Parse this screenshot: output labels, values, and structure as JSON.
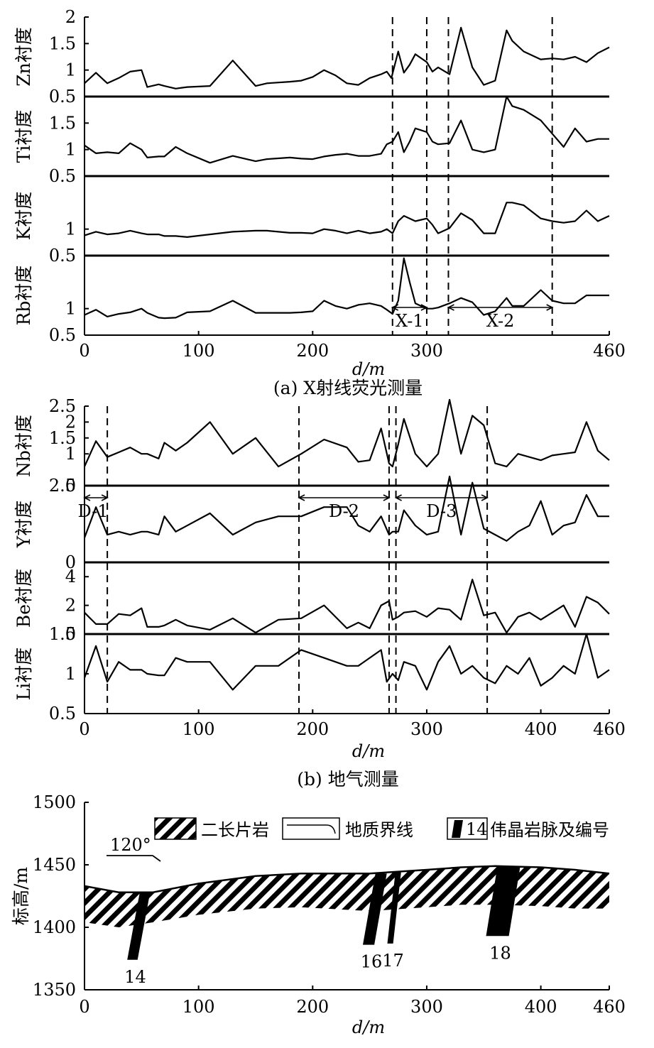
{
  "chart_data": [
    {
      "type": "line",
      "caption": "(a) X射线荧光测量",
      "xlabel": "d/m",
      "xlim": [
        0,
        460
      ],
      "xticks": [
        "0",
        "100",
        "200",
        "300",
        "460"
      ],
      "xtick_values": [
        0,
        100,
        200,
        300,
        460
      ],
      "divider_x": [
        270,
        300,
        319,
        410
      ],
      "zones": [
        {
          "label": "X-1",
          "from": 270,
          "to": 300
        },
        {
          "label": "X-2",
          "from": 319,
          "to": 410
        }
      ],
      "panels": [
        {
          "ylabel": "Zn衬度",
          "ylim": [
            0.5,
            2
          ],
          "yticks": [
            "0.5",
            "1",
            "1.5",
            "2"
          ],
          "ytick_values": [
            0.5,
            1,
            1.5,
            2
          ],
          "x": [
            0,
            10,
            20,
            30,
            40,
            50,
            55,
            65,
            70,
            80,
            90,
            110,
            130,
            150,
            160,
            180,
            190,
            200,
            210,
            220,
            230,
            240,
            250,
            260,
            265,
            269,
            275,
            280,
            285,
            290,
            300,
            305,
            310,
            320,
            330,
            340,
            350,
            360,
            370,
            375,
            385,
            400,
            410,
            420,
            430,
            440,
            450,
            460
          ],
          "values": [
            0.75,
            0.95,
            0.75,
            0.85,
            0.97,
            1.0,
            0.68,
            0.73,
            0.7,
            0.65,
            0.68,
            0.7,
            1.18,
            0.7,
            0.75,
            0.78,
            0.8,
            0.87,
            1.0,
            0.9,
            0.75,
            0.72,
            0.85,
            0.92,
            0.97,
            0.85,
            1.35,
            0.95,
            1.1,
            1.3,
            1.15,
            0.97,
            1.05,
            0.92,
            1.8,
            1.05,
            0.72,
            0.8,
            1.75,
            1.55,
            1.35,
            1.2,
            1.22,
            1.2,
            1.25,
            1.15,
            1.32,
            1.43
          ]
        },
        {
          "ylabel": "Ti衬度",
          "ylim": [
            0.5,
            2
          ],
          "yticks": [
            "0.5",
            "1",
            "1.5"
          ],
          "ytick_values": [
            0.5,
            1,
            1.5
          ],
          "x": [
            0,
            10,
            20,
            30,
            40,
            50,
            55,
            65,
            70,
            80,
            90,
            110,
            130,
            150,
            160,
            180,
            190,
            200,
            210,
            220,
            230,
            240,
            250,
            260,
            265,
            270,
            275,
            280,
            285,
            290,
            300,
            305,
            310,
            320,
            330,
            340,
            350,
            360,
            370,
            375,
            385,
            400,
            410,
            420,
            430,
            440,
            450,
            460
          ],
          "values": [
            1.08,
            0.93,
            0.95,
            0.93,
            1.12,
            1.0,
            0.85,
            0.87,
            0.87,
            1.05,
            0.93,
            0.75,
            0.88,
            0.78,
            0.82,
            0.85,
            0.83,
            0.82,
            0.87,
            0.9,
            0.92,
            0.88,
            0.88,
            0.92,
            1.1,
            1.15,
            1.33,
            0.95,
            1.15,
            1.4,
            1.33,
            1.15,
            1.1,
            1.12,
            1.55,
            1.0,
            0.95,
            1.0,
            2.0,
            1.82,
            1.75,
            1.55,
            1.3,
            1.05,
            1.4,
            1.15,
            1.2,
            1.2
          ]
        },
        {
          "ylabel": "K衬度",
          "ylim": [
            0.5,
            2
          ],
          "yticks": [
            "0.5",
            "1"
          ],
          "ytick_values": [
            0.5,
            1
          ],
          "x": [
            0,
            10,
            20,
            30,
            40,
            50,
            55,
            65,
            70,
            80,
            90,
            110,
            130,
            150,
            160,
            180,
            190,
            200,
            210,
            220,
            230,
            240,
            250,
            260,
            265,
            270,
            275,
            280,
            285,
            290,
            300,
            305,
            310,
            320,
            330,
            340,
            350,
            360,
            370,
            375,
            385,
            400,
            410,
            420,
            430,
            440,
            450,
            460
          ],
          "values": [
            0.88,
            0.95,
            0.9,
            0.92,
            0.97,
            0.92,
            0.9,
            0.9,
            0.87,
            0.87,
            0.85,
            0.9,
            0.95,
            0.97,
            0.97,
            0.93,
            0.93,
            0.92,
            1.0,
            0.97,
            0.92,
            0.97,
            0.92,
            0.95,
            1.0,
            0.92,
            1.15,
            1.25,
            1.2,
            1.15,
            1.2,
            1.08,
            0.92,
            1.02,
            1.3,
            1.17,
            0.92,
            0.92,
            1.5,
            1.5,
            1.45,
            1.2,
            1.15,
            1.12,
            1.15,
            1.35,
            1.15,
            1.25
          ]
        },
        {
          "ylabel": "Rb衬度",
          "ylim": [
            0.5,
            2
          ],
          "yticks": [
            "0.5",
            "1"
          ],
          "ytick_values": [
            0.5,
            1
          ],
          "x": [
            0,
            10,
            20,
            30,
            40,
            50,
            55,
            65,
            70,
            80,
            90,
            110,
            130,
            150,
            160,
            180,
            190,
            200,
            210,
            220,
            230,
            240,
            250,
            260,
            265,
            270,
            275,
            280,
            285,
            290,
            300,
            305,
            310,
            320,
            330,
            340,
            350,
            360,
            370,
            375,
            385,
            400,
            410,
            420,
            430,
            440,
            450,
            460
          ],
          "values": [
            0.88,
            0.98,
            0.85,
            0.9,
            0.93,
            1.0,
            0.92,
            0.83,
            0.82,
            0.83,
            0.93,
            0.95,
            1.15,
            0.92,
            0.92,
            0.92,
            0.93,
            0.95,
            1.15,
            1.05,
            1.0,
            1.07,
            1.1,
            1.05,
            0.98,
            0.9,
            1.15,
            1.95,
            1.5,
            1.1,
            1.0,
            1.0,
            1.02,
            1.1,
            1.2,
            1.12,
            0.88,
            0.95,
            1.2,
            1.05,
            1.05,
            1.35,
            1.15,
            1.1,
            1.1,
            1.25,
            1.25,
            1.25
          ]
        }
      ]
    },
    {
      "type": "line",
      "caption": "(b) 地气测量",
      "xlabel": "d/m",
      "xlim": [
        0,
        460
      ],
      "xticks": [
        "0",
        "100",
        "200",
        "300",
        "400",
        "460"
      ],
      "xtick_values": [
        0,
        100,
        200,
        300,
        400,
        460
      ],
      "divider_x": [
        20,
        188,
        267,
        273,
        353
      ],
      "zones": [
        {
          "label": "D-1",
          "from": 0,
          "to": 20
        },
        {
          "label": "D-2",
          "from": 188,
          "to": 267
        },
        {
          "label": "D-3",
          "from": 273,
          "to": 353
        }
      ],
      "panels": [
        {
          "ylabel": "Nb衬度",
          "ylim": [
            0,
            2.5
          ],
          "yticks": [
            "0",
            "1",
            "1.5",
            "2",
            "2.5"
          ],
          "ytick_values": [
            0,
            1,
            1.5,
            2,
            2.5
          ],
          "x": [
            0,
            10,
            20,
            30,
            40,
            50,
            55,
            65,
            70,
            80,
            90,
            110,
            130,
            150,
            170,
            190,
            210,
            230,
            240,
            250,
            260,
            267,
            270,
            275,
            280,
            290,
            300,
            310,
            320,
            330,
            340,
            350,
            360,
            370,
            380,
            390,
            400,
            410,
            420,
            430,
            440,
            450,
            460
          ],
          "values": [
            0.6,
            1.4,
            0.9,
            1.05,
            1.2,
            1.0,
            1.0,
            0.85,
            1.35,
            1.1,
            1.35,
            2.0,
            1.0,
            1.5,
            0.6,
            1.0,
            1.45,
            1.2,
            0.75,
            0.8,
            1.8,
            0.7,
            0.6,
            1.3,
            2.1,
            1.0,
            0.6,
            1.0,
            2.7,
            1.0,
            2.2,
            1.9,
            0.7,
            0.6,
            1.0,
            0.9,
            0.8,
            0.95,
            1.0,
            1.05,
            2.0,
            1.1,
            0.8
          ]
        },
        {
          "ylabel": "Y衬度",
          "ylim": [
            0,
            2.5
          ],
          "yticks": [
            "0",
            "2.5"
          ],
          "ytick_values": [
            0,
            2.5
          ],
          "x": [
            0,
            10,
            20,
            30,
            40,
            50,
            55,
            65,
            70,
            80,
            90,
            110,
            130,
            150,
            170,
            190,
            210,
            230,
            240,
            250,
            260,
            267,
            270,
            275,
            280,
            290,
            300,
            310,
            320,
            330,
            340,
            350,
            360,
            370,
            380,
            390,
            400,
            410,
            420,
            430,
            440,
            450,
            460
          ],
          "values": [
            0.8,
            1.8,
            0.9,
            1.0,
            0.9,
            1.0,
            1.0,
            0.9,
            1.5,
            1.0,
            1.2,
            1.6,
            0.9,
            1.3,
            1.5,
            1.5,
            1.8,
            1.8,
            1.2,
            1.0,
            1.5,
            0.9,
            1.0,
            1.0,
            1.7,
            1.2,
            0.9,
            1.0,
            2.8,
            0.9,
            2.6,
            1.1,
            0.9,
            0.7,
            1.0,
            1.2,
            2.0,
            0.9,
            1.2,
            1.3,
            2.2,
            1.5,
            1.5
          ]
        },
        {
          "ylabel": "Be衬度",
          "ylim": [
            0,
            5
          ],
          "yticks": [
            "0",
            "2",
            "4"
          ],
          "ytick_values": [
            0,
            2,
            4
          ],
          "x": [
            0,
            10,
            20,
            30,
            40,
            50,
            55,
            65,
            70,
            80,
            90,
            110,
            130,
            150,
            170,
            190,
            210,
            230,
            240,
            250,
            260,
            267,
            270,
            275,
            280,
            290,
            300,
            310,
            320,
            330,
            340,
            350,
            360,
            370,
            380,
            390,
            400,
            410,
            420,
            430,
            440,
            450,
            460
          ],
          "values": [
            1.5,
            0.7,
            0.7,
            1.4,
            1.3,
            1.8,
            0.5,
            0.5,
            0.6,
            1.0,
            0.6,
            0.3,
            1.1,
            0.1,
            1.0,
            1.1,
            2.0,
            0.4,
            0.8,
            0.4,
            2.0,
            2.3,
            1.0,
            1.2,
            1.5,
            1.6,
            1.2,
            1.8,
            1.7,
            1.0,
            3.8,
            1.3,
            1.5,
            0.1,
            1.2,
            1.5,
            1.0,
            1.5,
            2.0,
            0.5,
            2.6,
            2.2,
            1.4
          ]
        },
        {
          "ylabel": "Li衬度",
          "ylim": [
            0.5,
            1.5
          ],
          "yticks": [
            "0.5",
            "1",
            "1.5"
          ],
          "ytick_values": [
            0.5,
            1,
            1.5
          ],
          "x": [
            0,
            10,
            20,
            30,
            40,
            50,
            55,
            65,
            70,
            80,
            90,
            110,
            130,
            150,
            170,
            190,
            210,
            230,
            240,
            250,
            260,
            265,
            270,
            275,
            280,
            290,
            300,
            310,
            320,
            330,
            340,
            350,
            360,
            370,
            380,
            390,
            400,
            410,
            420,
            430,
            440,
            450,
            460
          ],
          "values": [
            0.95,
            1.35,
            0.9,
            1.15,
            1.05,
            1.05,
            1.0,
            0.98,
            0.98,
            1.2,
            1.15,
            1.15,
            0.8,
            1.1,
            1.1,
            1.3,
            1.2,
            1.1,
            1.1,
            1.2,
            1.3,
            0.9,
            1.0,
            0.92,
            1.15,
            1.1,
            0.8,
            1.15,
            1.35,
            1.0,
            1.1,
            0.95,
            0.88,
            1.1,
            1.0,
            1.2,
            0.85,
            0.95,
            1.1,
            1.0,
            1.5,
            0.95,
            1.05
          ]
        }
      ]
    }
  ],
  "section": {
    "ylabel": "标高/m",
    "xlabel": "d/m",
    "ylim": [
      1350,
      1500
    ],
    "yticks": [
      "1350",
      "1400",
      "1450",
      "1500"
    ],
    "ytick_values": [
      1350,
      1400,
      1450,
      1500
    ],
    "xlim": [
      0,
      460
    ],
    "xticks": [
      "0",
      "100",
      "200",
      "300",
      "400",
      "460"
    ],
    "xtick_values": [
      0,
      100,
      200,
      300,
      400,
      460
    ],
    "direction_label": "120°",
    "legend": {
      "rock": "二长片岩",
      "boundary": "地质界线",
      "vein_number": "14",
      "vein": "伟晶岩脉及编号"
    },
    "surface": {
      "x": [
        0,
        30,
        60,
        100,
        150,
        190,
        250,
        300,
        330,
        360,
        400,
        430,
        460
      ],
      "y": [
        1433,
        1428,
        1428,
        1435,
        1441,
        1443,
        1443,
        1446,
        1448,
        1449,
        1448,
        1446,
        1443
      ]
    },
    "rock_bottom": {
      "x": [
        0,
        30,
        60,
        100,
        150,
        190,
        250,
        300,
        330,
        360,
        400,
        430,
        460
      ],
      "y": [
        1404,
        1400,
        1404,
        1410,
        1415,
        1416,
        1413,
        1416,
        1418,
        1418,
        1417,
        1415,
        1415
      ]
    },
    "veins": [
      {
        "label": "14",
        "top_x": 53,
        "top_y": 1428,
        "bottom_x": 42,
        "bottom_y": 1374,
        "width_m": 9
      },
      {
        "label": "16",
        "top_x": 260,
        "top_y": 1443,
        "bottom_x": 249,
        "bottom_y": 1386,
        "width_m": 10
      },
      {
        "label": "17",
        "top_x": 275,
        "top_y": 1444,
        "bottom_x": 268,
        "bottom_y": 1387,
        "width_m": 5
      },
      {
        "label": "18",
        "top_x": 372,
        "top_y": 1449,
        "bottom_x": 362,
        "bottom_y": 1393,
        "width_m": 20
      }
    ]
  }
}
